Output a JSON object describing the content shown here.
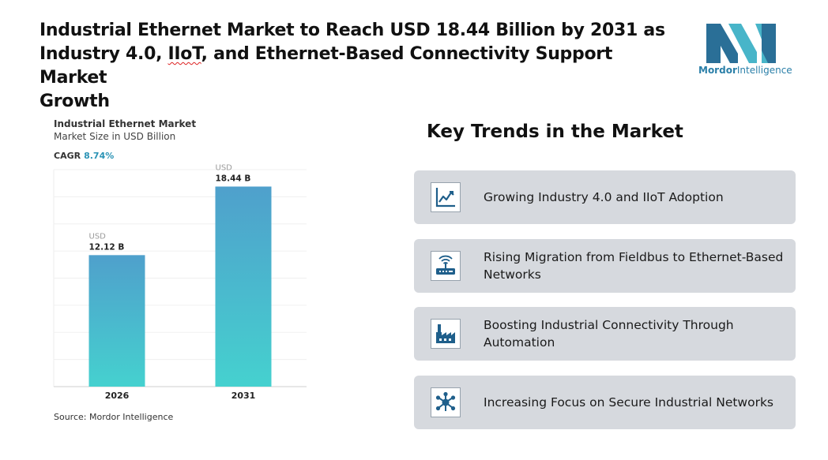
{
  "headline": {
    "line1": "Industrial Ethernet Market to Reach USD 18.44 Billion by 2031 as",
    "line2_pre": "Industry 4.0, ",
    "line2_squiggle": "IIoT",
    "line2_post": ", and Ethernet-Based Connectivity Support Market",
    "line3": "Growth"
  },
  "logo": {
    "brand": "Mordor",
    "suffix": "Intelligence",
    "colors": {
      "dark": "#2a6f97",
      "light": "#48b5c9"
    }
  },
  "chart_data": {
    "type": "bar",
    "title": "Industrial Ethernet Market",
    "subtitle": "Market Size in USD Billion",
    "cagr_label": "CAGR",
    "cagr_value": "8.74%",
    "categories": [
      "2026",
      "2031"
    ],
    "values": [
      12.12,
      18.44
    ],
    "unit_prefix": "USD",
    "value_labels": [
      "12.12 B",
      "18.44 B"
    ],
    "ylim": [
      0,
      20
    ],
    "grid": true,
    "bar_gradient": {
      "top": "#4fa0cc",
      "bottom": "#45d1cf"
    },
    "source": "Source: Mordor Intelligence"
  },
  "trends": {
    "title": "Key Trends in the Market",
    "items": [
      {
        "text": "Growing Industry 4.0 and IIoT Adoption",
        "icon": "line-chart-icon"
      },
      {
        "text": "Rising Migration from Fieldbus to Ethernet-Based Networks",
        "icon": "router-icon"
      },
      {
        "text": "Boosting Industrial Connectivity Through Automation",
        "icon": "factory-icon"
      },
      {
        "text": "Increasing Focus on Secure Industrial Networks",
        "icon": "network-hub-icon"
      }
    ],
    "icon_color": "#1f5f8b",
    "card_color": "#d6d9de"
  }
}
